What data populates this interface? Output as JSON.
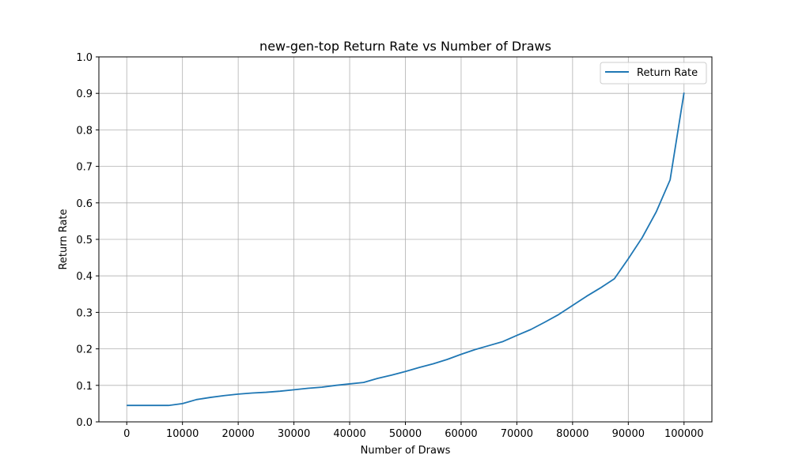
{
  "chart_data": {
    "type": "line",
    "title": "new-gen-top Return Rate vs Number of Draws",
    "xlabel": "Number of Draws",
    "ylabel": "Return Rate",
    "xlim": [
      -5000,
      105000
    ],
    "ylim": [
      0,
      1.0
    ],
    "xticks": [
      0,
      10000,
      20000,
      30000,
      40000,
      50000,
      60000,
      70000,
      80000,
      90000,
      100000
    ],
    "yticks": [
      0.0,
      0.1,
      0.2,
      0.3,
      0.4,
      0.5,
      0.6,
      0.7,
      0.8,
      0.9,
      1.0
    ],
    "grid": true,
    "legend_position": "top-right",
    "series": [
      {
        "name": "Return Rate",
        "color": "#1f77b4",
        "x": [
          0,
          2500,
          5000,
          7500,
          10000,
          12500,
          15000,
          17500,
          20000,
          22500,
          25000,
          27500,
          30000,
          32500,
          35000,
          37500,
          40000,
          42500,
          45000,
          47500,
          50000,
          52500,
          55000,
          57500,
          60000,
          62500,
          65000,
          67500,
          70000,
          72500,
          75000,
          77500,
          80000,
          82500,
          85000,
          87500,
          90000,
          92500,
          95000,
          97500,
          100000
        ],
        "y": [
          0.045,
          0.045,
          0.045,
          0.045,
          0.05,
          0.061,
          0.067,
          0.072,
          0.076,
          0.079,
          0.081,
          0.084,
          0.088,
          0.092,
          0.095,
          0.1,
          0.104,
          0.108,
          0.119,
          0.128,
          0.138,
          0.149,
          0.159,
          0.171,
          0.185,
          0.198,
          0.209,
          0.22,
          0.237,
          0.253,
          0.273,
          0.294,
          0.319,
          0.344,
          0.367,
          0.392,
          0.447,
          0.505,
          0.575,
          0.663,
          0.902
        ]
      }
    ]
  }
}
